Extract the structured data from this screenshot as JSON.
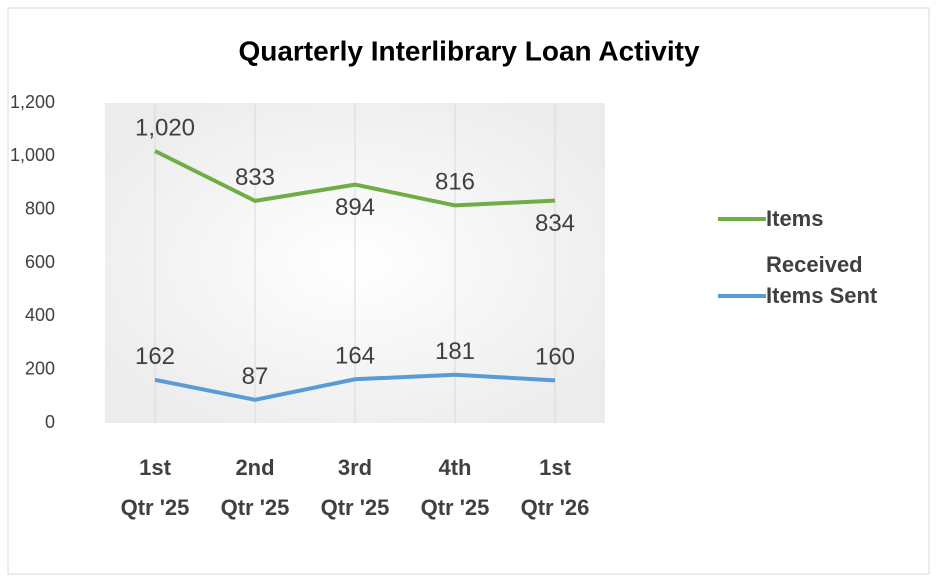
{
  "chart_data": {
    "type": "line",
    "title": "Quarterly Interlibrary Loan Activity",
    "categories": [
      "1st Qtr '25",
      "2nd Qtr '25",
      "3rd Qtr '25",
      "4th Qtr '25",
      "1st Qtr '26"
    ],
    "series": [
      {
        "name": "Items Received",
        "color": "#70ad47",
        "values": [
          1020,
          833,
          894,
          816,
          834
        ],
        "value_labels": [
          "1,020",
          "833",
          "894",
          "816",
          "834"
        ]
      },
      {
        "name": "Items Sent",
        "color": "#5b9bd5",
        "values": [
          162,
          87,
          164,
          181,
          160
        ]
      }
    ],
    "ylim": [
      0,
      1200
    ],
    "yticks": [
      0,
      200,
      400,
      600,
      800,
      {
        "value": 1000,
        "label": "1,000"
      },
      {
        "value": 1200,
        "label": "1,200"
      }
    ],
    "grid": "x",
    "legend": "right"
  }
}
